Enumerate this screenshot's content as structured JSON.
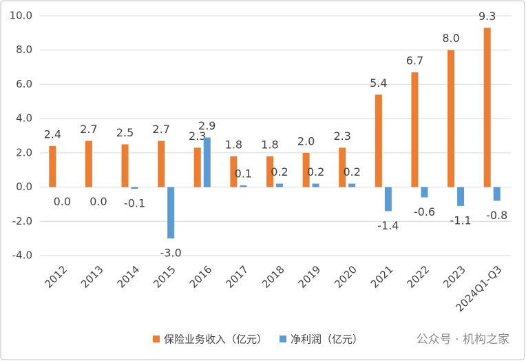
{
  "chart_data": {
    "type": "bar",
    "categories": [
      "2012",
      "2013",
      "2014",
      "2015",
      "2016",
      "2017",
      "2018",
      "2019",
      "2020",
      "2021",
      "2022",
      "2023",
      "2024Q1-Q3"
    ],
    "series": [
      {
        "name": "保险业务收入（亿元）",
        "color": "#ED7D31",
        "values": [
          2.4,
          2.7,
          2.5,
          2.7,
          2.3,
          1.8,
          1.8,
          2.0,
          2.3,
          5.4,
          6.7,
          8.0,
          9.3
        ],
        "value_labels": [
          "2.4",
          "2.7",
          "2.5",
          "2.7",
          "2.3",
          "1.8",
          "1.8",
          "2.0",
          "2.3",
          "5.4",
          "6.7",
          "8.0",
          "9.3"
        ]
      },
      {
        "name": "净利润（亿元）",
        "color": "#5B9BD5",
        "values": [
          0.0,
          0.0,
          -0.1,
          -3.0,
          2.9,
          0.1,
          0.2,
          0.2,
          0.2,
          -1.4,
          -0.6,
          -1.1,
          -0.8
        ],
        "value_labels": [
          "0.0",
          "0.0",
          "-0.1",
          "-3.0",
          "2.9",
          "0.1",
          "0.2",
          "0.2",
          "0.2",
          "-1.4",
          "-0.6",
          "-1.1",
          "-0.8"
        ]
      }
    ],
    "ylim": [
      -4,
      10
    ],
    "yticks": [
      {
        "value": -4,
        "label": "-4.0"
      },
      {
        "value": -2,
        "label": "-2.0"
      },
      {
        "value": 0,
        "label": "0.0"
      },
      {
        "value": 2,
        "label": "2.0"
      },
      {
        "value": 4,
        "label": "4.0"
      },
      {
        "value": 6,
        "label": "6.0"
      },
      {
        "value": 8,
        "label": "8.0"
      },
      {
        "value": 10,
        "label": "10.0"
      }
    ],
    "grid": true,
    "legend": "bottom",
    "watermark": "公众号 · 机构之家"
  }
}
